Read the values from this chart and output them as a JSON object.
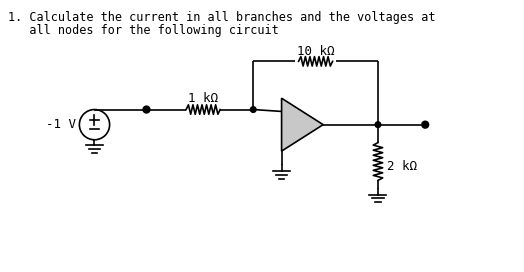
{
  "title_line1": "1. Calculate the current in all branches and the voltages at",
  "title_line2": "   all nodes for the following circuit",
  "background_color": "#ffffff",
  "line_color": "#000000",
  "text_color": "#000000",
  "font_family": "monospace",
  "title_fontsize": 8.5,
  "label_fontsize": 9.0,
  "resistor_label_10k": "10 kΩ",
  "resistor_label_1k": "1 kΩ",
  "resistor_label_2k": "2 kΩ",
  "voltage_label": "-1 V"
}
